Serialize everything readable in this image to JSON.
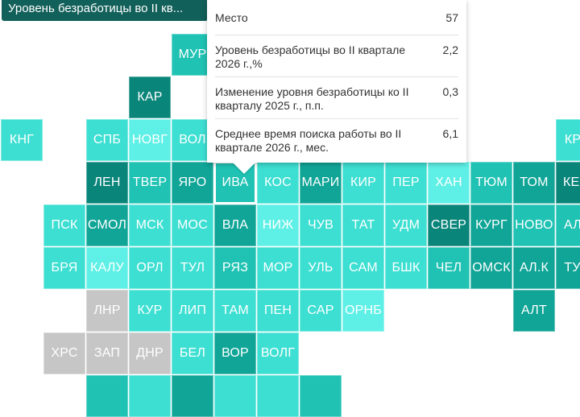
{
  "header": {
    "title": "Уровень безработицы во II кв..."
  },
  "tooltip": {
    "rows": [
      {
        "label": "Место",
        "value": "57"
      },
      {
        "label": "Уровень безработицы во II квартале 2026 г.,%",
        "value": "2,2"
      },
      {
        "label": "Изменение уровня безработицы ко II кварталу 2025 г., п.п.",
        "value": "0,3"
      },
      {
        "label": "Среднее время поиска работы во II квартале 2026 г., мес.",
        "value": "6,1"
      }
    ]
  },
  "map": {
    "colors": {
      "c1": "#5ef0e6",
      "c2": "#3ddfd2",
      "c3": "#1fc2b3",
      "c4": "#10a597",
      "c5": "#0a857a",
      "c0": "#c6c6c6"
    },
    "highlighted": "ИВА",
    "tiles": [
      {
        "label": "МУР",
        "col": 4,
        "row": 1,
        "shade": "c3"
      },
      {
        "label": "КАР",
        "col": 3,
        "row": 2,
        "shade": "c5"
      },
      {
        "label": "КНГ",
        "col": 0,
        "row": 3,
        "shade": "c2"
      },
      {
        "label": "СПБ",
        "col": 2,
        "row": 3,
        "shade": "c2"
      },
      {
        "label": "НОВГ",
        "col": 3,
        "row": 3,
        "shade": "c1"
      },
      {
        "label": "ВОЛ",
        "col": 4,
        "row": 3,
        "shade": "c2"
      },
      {
        "label": "КРА",
        "col": 13,
        "row": 3,
        "shade": "c2"
      },
      {
        "label": "ЛЕН",
        "col": 2,
        "row": 4,
        "shade": "c5"
      },
      {
        "label": "ТВЕР",
        "col": 3,
        "row": 4,
        "shade": "c3"
      },
      {
        "label": "ЯРО",
        "col": 4,
        "row": 4,
        "shade": "c4"
      },
      {
        "label": "ИВА",
        "col": 5,
        "row": 4,
        "shade": "c3"
      },
      {
        "label": "КОС",
        "col": 6,
        "row": 4,
        "shade": "c2"
      },
      {
        "label": "МАРИ",
        "col": 7,
        "row": 4,
        "shade": "c4"
      },
      {
        "label": "КИР",
        "col": 8,
        "row": 4,
        "shade": "c2"
      },
      {
        "label": "ПЕР",
        "col": 9,
        "row": 4,
        "shade": "c2"
      },
      {
        "label": "ХАН",
        "col": 10,
        "row": 4,
        "shade": "c1"
      },
      {
        "label": "ТЮМ",
        "col": 11,
        "row": 4,
        "shade": "c3"
      },
      {
        "label": "ТОМ",
        "col": 12,
        "row": 4,
        "shade": "c4"
      },
      {
        "label": "КЕМ",
        "col": 13,
        "row": 4,
        "shade": "c5"
      },
      {
        "label": "ПСК",
        "col": 1,
        "row": 5,
        "shade": "c2"
      },
      {
        "label": "СМОЛ",
        "col": 2,
        "row": 5,
        "shade": "c4"
      },
      {
        "label": "МСК",
        "col": 3,
        "row": 5,
        "shade": "c2"
      },
      {
        "label": "МОС",
        "col": 4,
        "row": 5,
        "shade": "c2"
      },
      {
        "label": "ВЛА",
        "col": 5,
        "row": 5,
        "shade": "c4"
      },
      {
        "label": "НИЖ",
        "col": 6,
        "row": 5,
        "shade": "c1"
      },
      {
        "label": "ЧУВ",
        "col": 7,
        "row": 5,
        "shade": "c2"
      },
      {
        "label": "ТАТ",
        "col": 8,
        "row": 5,
        "shade": "c2"
      },
      {
        "label": "УДМ",
        "col": 9,
        "row": 5,
        "shade": "c2"
      },
      {
        "label": "СВЕР",
        "col": 10,
        "row": 5,
        "shade": "c5"
      },
      {
        "label": "КУРГ",
        "col": 11,
        "row": 5,
        "shade": "c4"
      },
      {
        "label": "НОВО",
        "col": 12,
        "row": 5,
        "shade": "c3"
      },
      {
        "label": "АЛТ",
        "col": 13,
        "row": 5,
        "shade": "c3"
      },
      {
        "label": "БРЯ",
        "col": 1,
        "row": 6,
        "shade": "c2"
      },
      {
        "label": "КАЛУ",
        "col": 2,
        "row": 6,
        "shade": "c1"
      },
      {
        "label": "ОРЛ",
        "col": 3,
        "row": 6,
        "shade": "c2"
      },
      {
        "label": "ТУЛ",
        "col": 4,
        "row": 6,
        "shade": "c2"
      },
      {
        "label": "РЯЗ",
        "col": 5,
        "row": 6,
        "shade": "c3"
      },
      {
        "label": "МОР",
        "col": 6,
        "row": 6,
        "shade": "c2"
      },
      {
        "label": "УЛЬ",
        "col": 7,
        "row": 6,
        "shade": "c2"
      },
      {
        "label": "САМ",
        "col": 8,
        "row": 6,
        "shade": "c2"
      },
      {
        "label": "БШК",
        "col": 9,
        "row": 6,
        "shade": "c2"
      },
      {
        "label": "ЧЕЛ",
        "col": 10,
        "row": 6,
        "shade": "c3"
      },
      {
        "label": "ОМСК",
        "col": 11,
        "row": 6,
        "shade": "c4"
      },
      {
        "label": "АЛ.К",
        "col": 12,
        "row": 6,
        "shade": "c4"
      },
      {
        "label": "ТУВ",
        "col": 13,
        "row": 6,
        "shade": "c4"
      },
      {
        "label": "ЛНР",
        "col": 2,
        "row": 7,
        "shade": "c0"
      },
      {
        "label": "КУР",
        "col": 3,
        "row": 7,
        "shade": "c2"
      },
      {
        "label": "ЛИП",
        "col": 4,
        "row": 7,
        "shade": "c2"
      },
      {
        "label": "ТАМ",
        "col": 5,
        "row": 7,
        "shade": "c2"
      },
      {
        "label": "ПЕН",
        "col": 6,
        "row": 7,
        "shade": "c2"
      },
      {
        "label": "САР",
        "col": 7,
        "row": 7,
        "shade": "c2"
      },
      {
        "label": "ОРНБ",
        "col": 8,
        "row": 7,
        "shade": "c1"
      },
      {
        "label": "АЛТ",
        "col": 12,
        "row": 7,
        "shade": "c4"
      },
      {
        "label": "ХРС",
        "col": 1,
        "row": 8,
        "shade": "c0"
      },
      {
        "label": "ЗАП",
        "col": 2,
        "row": 8,
        "shade": "c0"
      },
      {
        "label": "ДНР",
        "col": 3,
        "row": 8,
        "shade": "c0"
      },
      {
        "label": "БЕЛ",
        "col": 4,
        "row": 8,
        "shade": "c2"
      },
      {
        "label": "ВОР",
        "col": 5,
        "row": 8,
        "shade": "c4"
      },
      {
        "label": "ВОЛГ",
        "col": 6,
        "row": 8,
        "shade": "c2"
      },
      {
        "label": "",
        "col": 2,
        "row": 9,
        "shade": "c3"
      },
      {
        "label": "",
        "col": 3,
        "row": 9,
        "shade": "c2"
      },
      {
        "label": "",
        "col": 4,
        "row": 9,
        "shade": "c4"
      },
      {
        "label": "",
        "col": 5,
        "row": 9,
        "shade": "c2"
      },
      {
        "label": "",
        "col": 6,
        "row": 9,
        "shade": "c2"
      },
      {
        "label": "",
        "col": 7,
        "row": 9,
        "shade": "c3"
      }
    ]
  }
}
